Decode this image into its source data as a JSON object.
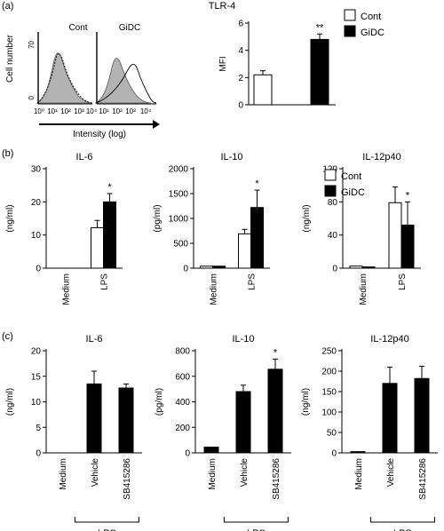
{
  "panels": {
    "a": {
      "letter": "(a)",
      "title": "TLR-4",
      "hist_labels": [
        "Cont",
        "GiDC"
      ],
      "hist_ymax": "70",
      "hist_xticks": [
        "10⁰",
        "10¹",
        "10²",
        "10³",
        "10⁴"
      ],
      "hist_ylabel": "Cell number",
      "hist_xlabel": "Intensity (log)",
      "hist_yzero": "0"
    },
    "b": {
      "letter": "(b)"
    },
    "c": {
      "letter": "(c)"
    }
  },
  "colors": {
    "cont": "#ffffff",
    "gidc": "#000000",
    "hist_fill": "#b3b3b3"
  },
  "chart_data": [
    {
      "id": "a-mfi",
      "type": "bar",
      "title": "",
      "ylabel": "MFI",
      "ylim": [
        0,
        6
      ],
      "yticks": [
        0,
        2,
        4,
        6
      ],
      "categories": [
        ""
      ],
      "series": [
        {
          "name": "Cont",
          "values": [
            2.2
          ],
          "errors": [
            0.3
          ]
        },
        {
          "name": "GiDC",
          "values": [
            4.8
          ],
          "errors": [
            0.4
          ]
        }
      ],
      "sig": [
        "**"
      ],
      "legend": "top-right"
    },
    {
      "id": "b-il6",
      "type": "bar",
      "title": "IL-6",
      "ylabel": "(ng/ml)",
      "ylim": [
        0,
        30
      ],
      "yticks": [
        0,
        10,
        20,
        30
      ],
      "categories": [
        "Medium",
        "LPS"
      ],
      "series": [
        {
          "name": "Cont",
          "values": [
            0,
            12.2
          ],
          "errors": [
            0,
            2.2
          ]
        },
        {
          "name": "GiDC",
          "values": [
            0,
            20
          ],
          "errors": [
            0,
            2.5
          ]
        }
      ],
      "sig": [
        "",
        "*"
      ]
    },
    {
      "id": "b-il10",
      "type": "bar",
      "title": "IL-10",
      "ylabel": "(pg/ml)",
      "ylim": [
        0,
        2000
      ],
      "yticks": [
        0,
        500,
        1000,
        1500,
        2000
      ],
      "categories": [
        "Medium",
        "LPS"
      ],
      "series": [
        {
          "name": "Cont",
          "values": [
            40,
            690
          ],
          "errors": [
            0,
            90
          ]
        },
        {
          "name": "GiDC",
          "values": [
            40,
            1220
          ],
          "errors": [
            0,
            350
          ]
        }
      ],
      "sig": [
        "",
        "*"
      ]
    },
    {
      "id": "b-il12",
      "type": "bar",
      "title": "IL-12p40",
      "ylabel": "(ng/ml)",
      "ylim": [
        0,
        120
      ],
      "yticks": [
        0,
        40,
        80,
        120
      ],
      "categories": [
        "Medium",
        "LPS"
      ],
      "series": [
        {
          "name": "Cont",
          "values": [
            2.5,
            79
          ],
          "errors": [
            0,
            19
          ]
        },
        {
          "name": "GiDC",
          "values": [
            1.5,
            52
          ],
          "errors": [
            0,
            28
          ]
        }
      ],
      "sig": [
        "",
        "*"
      ],
      "legend": "top-right"
    },
    {
      "id": "c-il6",
      "type": "bar",
      "title": "IL-6",
      "ylabel": "(ng/ml)",
      "ylim": [
        0,
        20
      ],
      "yticks": [
        0,
        5,
        10,
        15,
        20
      ],
      "categories": [
        "Medium",
        "Vehicle",
        "SB415286"
      ],
      "series": [
        {
          "name": "",
          "values": [
            0,
            13.5,
            12.7
          ],
          "errors": [
            0,
            2.5,
            0.8
          ]
        }
      ],
      "sig": [
        "",
        "",
        ""
      ],
      "group_label": "LPS"
    },
    {
      "id": "c-il10",
      "type": "bar",
      "title": "IL-10",
      "ylabel": "(pg/ml)",
      "ylim": [
        0,
        800
      ],
      "yticks": [
        0,
        200,
        400,
        600,
        800
      ],
      "categories": [
        "Medium",
        "Vehicle",
        "SB415286"
      ],
      "series": [
        {
          "name": "",
          "values": [
            45,
            480,
            655
          ],
          "errors": [
            0,
            50,
            80
          ]
        }
      ],
      "sig": [
        "",
        "",
        "*"
      ],
      "group_label": "LPS"
    },
    {
      "id": "c-il12",
      "type": "bar",
      "title": "IL-12p40",
      "ylabel": "(ng/ml)",
      "ylim": [
        0,
        250
      ],
      "yticks": [
        0,
        50,
        100,
        150,
        200,
        250
      ],
      "categories": [
        "Medium",
        "Vehicle",
        "SB415286"
      ],
      "series": [
        {
          "name": "",
          "values": [
            3,
            170,
            182
          ],
          "errors": [
            0,
            40,
            30
          ]
        }
      ],
      "sig": [
        "",
        "",
        ""
      ],
      "group_label": "LPS"
    }
  ]
}
